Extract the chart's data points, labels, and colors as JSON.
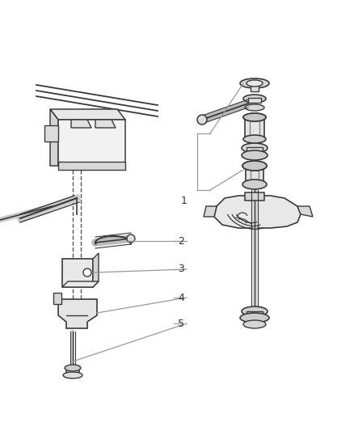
{
  "bg_color": "#ffffff",
  "lc": "#3a3a3a",
  "clc": "#999999",
  "fig_width": 4.38,
  "fig_height": 5.33,
  "dpi": 100
}
